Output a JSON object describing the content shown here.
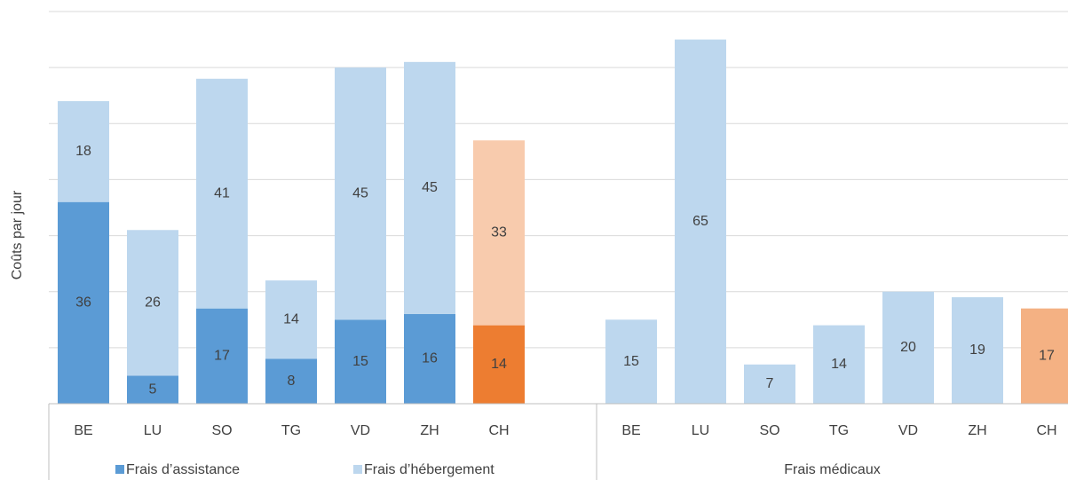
{
  "chart_data": {
    "type": "bar",
    "stacked": true,
    "y_label": "Coûts par jour",
    "ylim": [
      0,
      70
    ],
    "yticks": [
      0,
      10,
      20,
      30,
      40,
      50,
      60,
      70
    ],
    "grid": true,
    "groups": [
      {
        "categories": [
          "BE",
          "LU",
          "SO",
          "TG",
          "VD",
          "ZH",
          "CH"
        ],
        "series": [
          {
            "name": "Frais d’assistance",
            "color": "#5b9bd5",
            "colors": [
              "#5b9bd5",
              "#5b9bd5",
              "#5b9bd5",
              "#5b9bd5",
              "#5b9bd5",
              "#5b9bd5",
              "#ed7d31"
            ],
            "values": [
              36,
              5,
              17,
              8,
              15,
              16,
              14
            ]
          },
          {
            "name": "Frais d’hébergement",
            "color": "#bdd7ee",
            "colors": [
              "#bdd7ee",
              "#bdd7ee",
              "#bdd7ee",
              "#bdd7ee",
              "#bdd7ee",
              "#bdd7ee",
              "#f8cbad"
            ],
            "values": [
              18,
              26,
              41,
              14,
              45,
              45,
              33
            ]
          }
        ]
      },
      {
        "label": "Frais médicaux",
        "categories": [
          "BE",
          "LU",
          "SO",
          "TG",
          "VD",
          "ZH",
          "CH"
        ],
        "series": [
          {
            "color": "#bdd7ee",
            "colors": [
              "#bdd7ee",
              "#bdd7ee",
              "#bdd7ee",
              "#bdd7ee",
              "#bdd7ee",
              "#bdd7ee",
              "#f4b183"
            ],
            "values": [
              15,
              65,
              7,
              14,
              20,
              19,
              17
            ]
          }
        ]
      }
    ]
  }
}
